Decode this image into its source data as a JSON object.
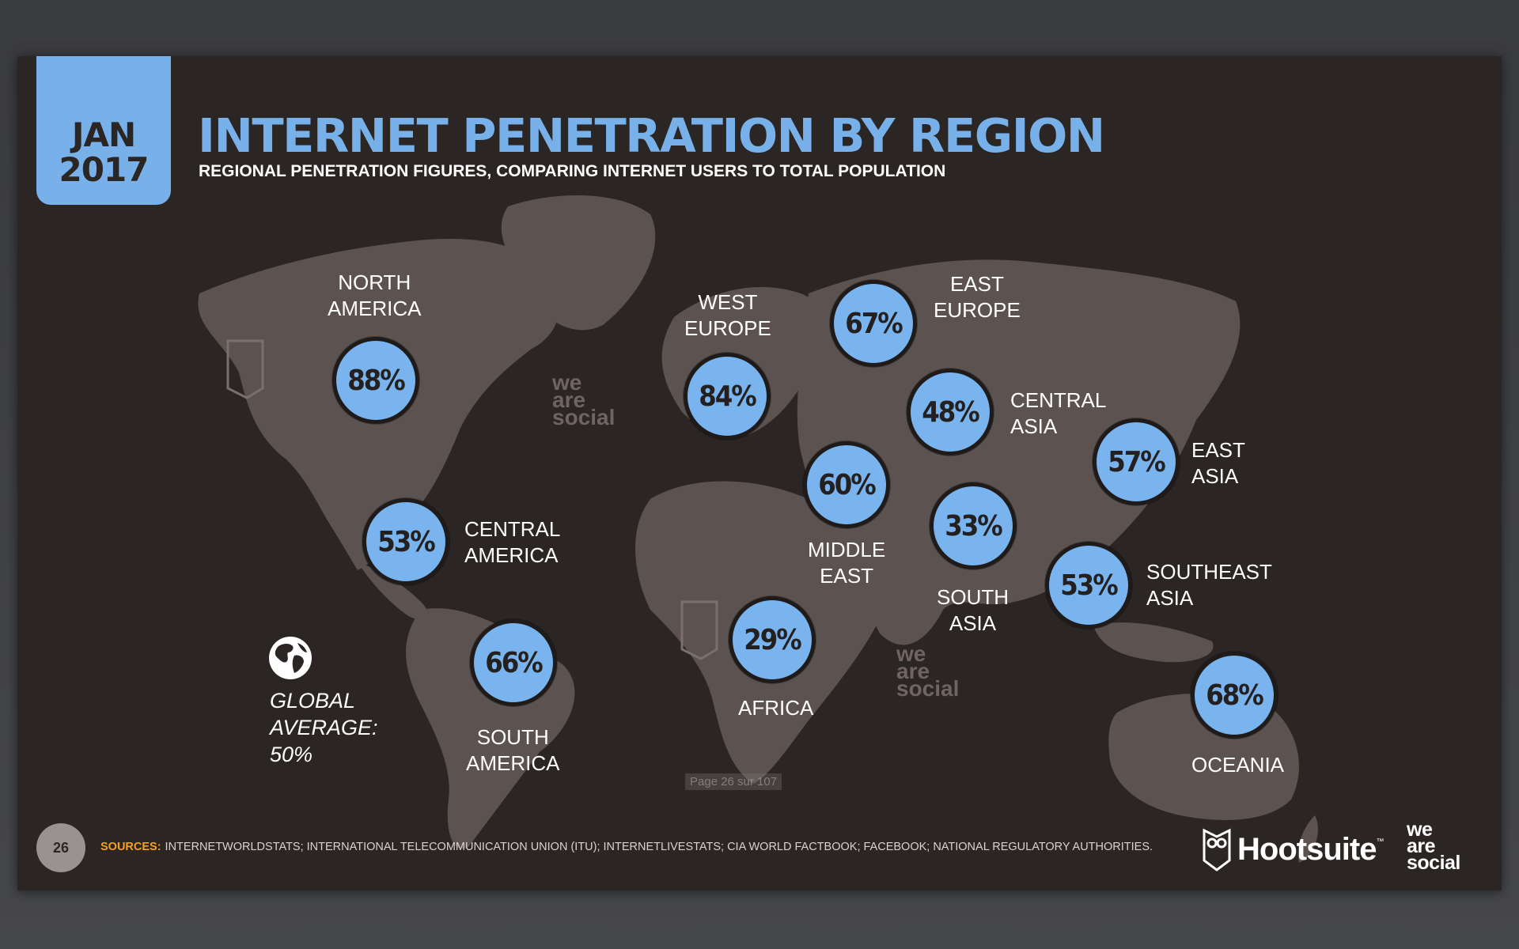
{
  "slide": {
    "date": {
      "month": "JAN",
      "year": "2017"
    },
    "title": "INTERNET PENETRATION BY REGION",
    "subtitle": "REGIONAL PENETRATION FIGURES, COMPARING INTERNET USERS TO TOTAL POPULATION",
    "regions": [
      {
        "name_lines": [
          "NORTH",
          "AMERICA"
        ],
        "value": "88%"
      },
      {
        "name_lines": [
          "CENTRAL",
          "AMERICA"
        ],
        "value": "53%"
      },
      {
        "name_lines": [
          "SOUTH",
          "AMERICA"
        ],
        "value": "66%"
      },
      {
        "name_lines": [
          "WEST",
          "EUROPE"
        ],
        "value": "84%"
      },
      {
        "name_lines": [
          "EAST",
          "EUROPE"
        ],
        "value": "67%"
      },
      {
        "name_lines": [
          "CENTRAL",
          "ASIA"
        ],
        "value": "48%"
      },
      {
        "name_lines": [
          "MIDDLE",
          "EAST"
        ],
        "value": "60%"
      },
      {
        "name_lines": [
          "AFRICA"
        ],
        "value": "29%"
      },
      {
        "name_lines": [
          "SOUTH",
          "ASIA"
        ],
        "value": "33%"
      },
      {
        "name_lines": [
          "EAST",
          "ASIA"
        ],
        "value": "57%"
      },
      {
        "name_lines": [
          "SOUTHEAST",
          "ASIA"
        ],
        "value": "53%"
      },
      {
        "name_lines": [
          "OCEANIA"
        ],
        "value": "68%"
      }
    ],
    "global_average": {
      "lines": [
        "GLOBAL",
        "AVERAGE:",
        "50%"
      ]
    },
    "page_number": "26",
    "sources_label": "SOURCES:",
    "sources_text": "INTERNETWORLDSTATS; INTERNATIONAL TELECOMMUNICATION UNION (ITU); INTERNETLIVESTATS; CIA WORLD FACTBOOK; FACEBOOK; NATIONAL REGULATORY AUTHORITIES.",
    "watermark_lines": [
      "we",
      "are",
      "social"
    ],
    "logos": {
      "hootsuite": "Hootsuite",
      "hootsuite_tm": "™",
      "wearesocial_lines": [
        "we",
        "are",
        "social"
      ]
    },
    "colors": {
      "accent": "#78b0e9",
      "background": "#2b2624",
      "sources_key": "#f6a01a",
      "map": "#5c5350"
    },
    "icons": [
      "globe-icon",
      "hootsuite-owl-icon"
    ]
  },
  "viewer": {
    "page_indicator": "Page 26 sur 107"
  }
}
